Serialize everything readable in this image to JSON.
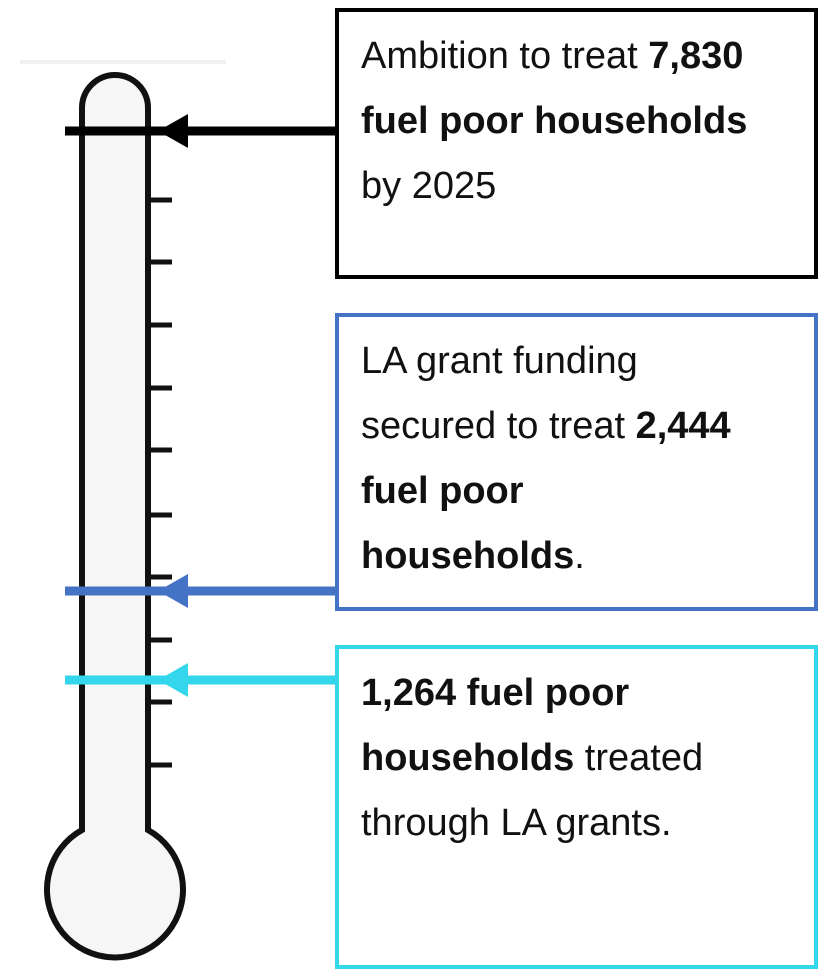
{
  "boxes": [
    {
      "color": "#000000",
      "parts": [
        {
          "text": "Ambition to treat ",
          "bold": false
        },
        {
          "text": "7,830 fuel poor households",
          "bold": true
        },
        {
          "text": " by 2025",
          "bold": false
        }
      ]
    },
    {
      "color": "#4472c4",
      "parts": [
        {
          "text": "LA grant funding secured to treat ",
          "bold": false
        },
        {
          "text": "2,444 fuel poor households",
          "bold": true
        },
        {
          "text": ".",
          "bold": false
        }
      ]
    },
    {
      "color": "#33d6ea",
      "parts": [
        {
          "text": "1,264 fuel poor households",
          "bold": true
        },
        {
          "text": " treated through LA grants.",
          "bold": false
        }
      ]
    }
  ]
}
